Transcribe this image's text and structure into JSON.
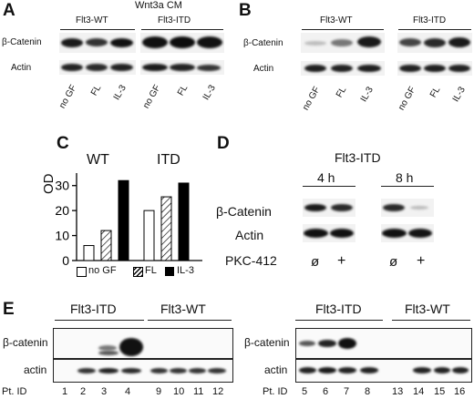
{
  "panelA": {
    "letter": "A",
    "title": "Wnt3a CM",
    "group1": "Flt3-WT",
    "group2": "Flt3-ITD",
    "row1": "β-Catenin",
    "row2": "Actin",
    "lanes": [
      "no GF",
      "FL",
      "IL-3",
      "no GF",
      "FL",
      "IL-3"
    ]
  },
  "panelB": {
    "letter": "B",
    "group1": "Flt3-WT",
    "group2": "Flt3-ITD",
    "row1": "β-Catenin",
    "row2": "Actin",
    "lanes": [
      "no GF",
      "FL",
      "IL-3",
      "no GF",
      "FL",
      "IL-3"
    ]
  },
  "panelC": {
    "letter": "C",
    "ylabel": "OD",
    "ticks": [
      "0",
      "10",
      "20",
      "30"
    ],
    "legend": [
      "no GF",
      "FL",
      "IL-3"
    ]
  },
  "panelD": {
    "letter": "D",
    "title": "Flt3-ITD",
    "time1": "4 h",
    "time2": "8 h",
    "row1": "β-Catenin",
    "row2": "Actin",
    "treatment": "PKC-412",
    "marks": [
      "ø",
      "+",
      "ø",
      "+"
    ]
  },
  "panelE": {
    "letter": "E",
    "left": {
      "group1": "Flt3-ITD",
      "group2": "Flt3-WT",
      "row1": "β-catenin",
      "row2": "actin",
      "pt_label": "Pt. ID",
      "ids": [
        "1",
        "2",
        "3",
        "4",
        "9",
        "10",
        "11",
        "12"
      ]
    },
    "right": {
      "group1": "Flt3-ITD",
      "group2": "Flt3-WT",
      "row1": "β-catenin",
      "row2": "actin",
      "pt_label": "Pt. ID",
      "ids": [
        "5",
        "6",
        "7",
        "8",
        "13",
        "14",
        "15",
        "16"
      ]
    }
  },
  "chart_data": {
    "type": "bar",
    "categories": [
      "WT",
      "ITD"
    ],
    "series": [
      {
        "name": "no GF",
        "values": [
          6,
          20
        ]
      },
      {
        "name": "FL",
        "values": [
          12,
          25.5
        ]
      },
      {
        "name": "IL-3",
        "values": [
          32,
          31
        ]
      }
    ],
    "xlabel": "",
    "ylabel": "OD",
    "ylim": [
      0,
      35
    ],
    "yticks": [
      0,
      10,
      20,
      30
    ],
    "legend_position": "bottom",
    "colors": {
      "no GF": "#ffffff",
      "FL": "hatched",
      "IL-3": "#000000"
    }
  }
}
